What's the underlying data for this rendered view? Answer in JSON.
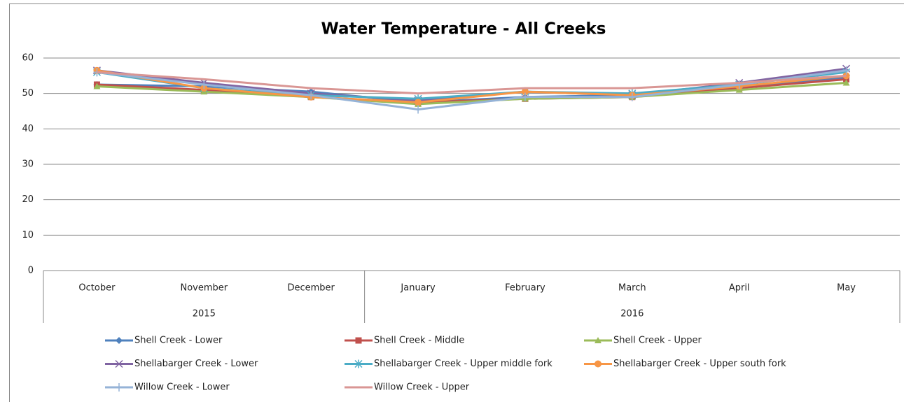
{
  "chart_data": {
    "type": "line",
    "title": "Water Temperature - All Creeks",
    "category_groups": [
      {
        "name": "2015",
        "categories": [
          "October",
          "November",
          "December"
        ]
      },
      {
        "name": "2016",
        "categories": [
          "January",
          "February",
          "March",
          "April",
          "May"
        ]
      }
    ],
    "ylim": [
      0,
      60
    ],
    "yticks": [
      0,
      10,
      20,
      30,
      40,
      50,
      60
    ],
    "grid": true,
    "legend": "bottom",
    "series": [
      {
        "name": "Shell Creek - Lower",
        "color": "#4f81bd",
        "marker": "diamond",
        "values": [
          52.5,
          52,
          50.5,
          47.5,
          49,
          49.5,
          52,
          54.5
        ]
      },
      {
        "name": "Shell Creek - Middle",
        "color": "#c0504d",
        "marker": "square",
        "values": [
          52.5,
          51,
          49,
          47.5,
          48.5,
          49,
          51.5,
          54
        ]
      },
      {
        "name": "Shell Creek - Upper",
        "color": "#9bbb59",
        "marker": "triangle",
        "values": [
          52,
          50.5,
          49,
          47,
          48.5,
          49,
          51,
          53
        ]
      },
      {
        "name": "Shellabarger Creek - Lower",
        "color": "#8064a2",
        "marker": "x",
        "values": [
          56.5,
          53,
          50,
          48,
          50.5,
          49.5,
          53,
          57
        ]
      },
      {
        "name": "Shellabarger Creek - Upper middle fork",
        "color": "#4bacc6",
        "marker": "star",
        "values": [
          56,
          51.5,
          49.5,
          48.5,
          50.5,
          50,
          52.5,
          56
        ]
      },
      {
        "name": "Shellabarger Creek - Upper south fork",
        "color": "#f79646",
        "marker": "circle",
        "values": [
          56.5,
          51.5,
          49,
          47.5,
          50.5,
          49.5,
          52,
          55
        ]
      },
      {
        "name": "Willow Creek - Lower",
        "color": "#95b3d7",
        "marker": "plus",
        "values": [
          56,
          52.5,
          49.5,
          45.5,
          49,
          49,
          52.5,
          56.5
        ]
      },
      {
        "name": "Willow Creek - Upper",
        "color": "#d99694",
        "marker": "none",
        "values": [
          56,
          54,
          51.5,
          50,
          51.5,
          51.5,
          53,
          55
        ]
      }
    ]
  }
}
